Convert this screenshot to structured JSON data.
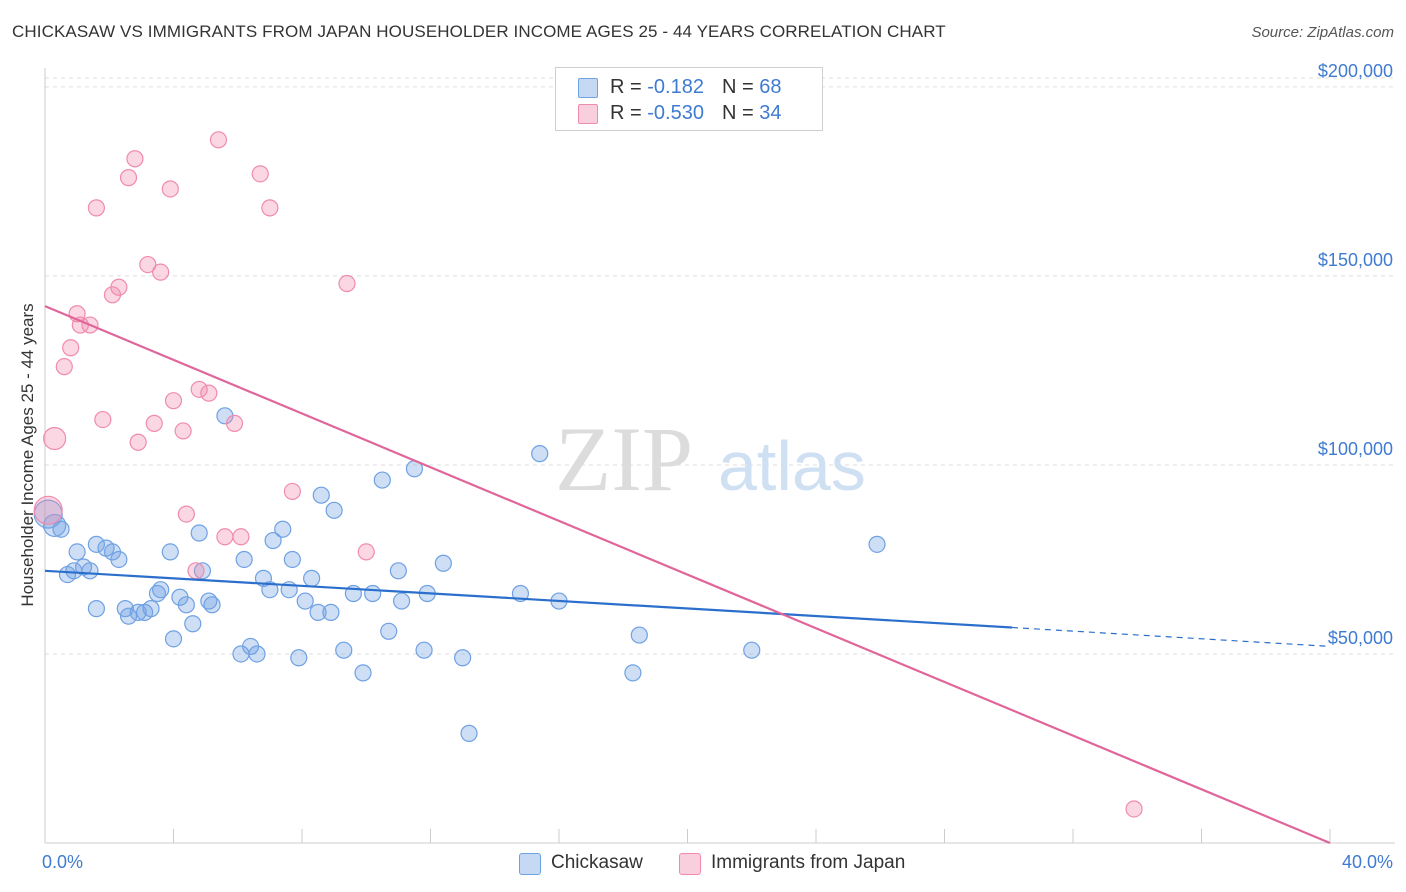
{
  "header": {
    "title": "CHICKASAW VS IMMIGRANTS FROM JAPAN HOUSEHOLDER INCOME AGES 25 - 44 YEARS CORRELATION CHART",
    "source": "Source: ZipAtlas.com"
  },
  "watermark": {
    "zip": "ZIP",
    "atlas": "atlas"
  },
  "legend_top": [
    {
      "r_label": "R = ",
      "r_value": "-0.182",
      "n_label": "N = ",
      "n_value": "68"
    },
    {
      "r_label": "R = ",
      "r_value": "-0.530",
      "n_label": "N = ",
      "n_value": "34"
    }
  ],
  "chart_data": {
    "type": "scatter",
    "title": "CHICKASAW VS IMMIGRANTS FROM JAPAN HOUSEHOLDER INCOME AGES 25 - 44 YEARS CORRELATION CHART",
    "xlabel": "",
    "ylabel": "Householder Income Ages 25 - 44 years",
    "xlim": [
      0,
      40
    ],
    "ylim": [
      0,
      205000
    ],
    "x_tick_labels": [
      "0.0%",
      "40.0%"
    ],
    "y_ticks": [
      50000,
      100000,
      150000,
      200000
    ],
    "y_tick_labels": [
      "$50,000",
      "$100,000",
      "$150,000",
      "$200,000"
    ],
    "grid": true,
    "legend_position": "bottom",
    "colors": {
      "chickasaw": "#6fa1e3",
      "japan": "#f08bae",
      "chickasaw_line": "#2b6fcc",
      "japan_line": "#e0669a",
      "tick_text": "#3f7bd1"
    },
    "series": [
      {
        "name": "Chickasaw",
        "r": -0.182,
        "n": 68,
        "trend": {
          "x": [
            0,
            30.1
          ],
          "y": [
            72000,
            57000
          ],
          "dashed_to": [
            40,
            52000
          ]
        },
        "points": [
          [
            0.1,
            87000,
            26
          ],
          [
            0.3,
            84000,
            20
          ],
          [
            0.5,
            83000,
            14
          ],
          [
            0.7,
            71000,
            14
          ],
          [
            0.9,
            72000,
            14
          ],
          [
            1.0,
            77000,
            14
          ],
          [
            1.2,
            73000,
            14
          ],
          [
            1.4,
            72000,
            14
          ],
          [
            1.6,
            62000,
            14
          ],
          [
            1.6,
            79000,
            14
          ],
          [
            1.9,
            78000,
            14
          ],
          [
            2.1,
            77000,
            14
          ],
          [
            2.3,
            75000,
            14
          ],
          [
            2.5,
            62000,
            14
          ],
          [
            2.6,
            60000,
            14
          ],
          [
            2.9,
            61000,
            14
          ],
          [
            3.1,
            61000,
            14
          ],
          [
            3.3,
            62000,
            14
          ],
          [
            3.5,
            66000,
            14
          ],
          [
            3.6,
            67000,
            14
          ],
          [
            3.9,
            77000,
            14
          ],
          [
            4.0,
            54000,
            14
          ],
          [
            4.2,
            65000,
            14
          ],
          [
            4.4,
            63000,
            14
          ],
          [
            4.6,
            58000,
            14
          ],
          [
            4.8,
            82000,
            14
          ],
          [
            4.9,
            72000,
            14
          ],
          [
            5.1,
            64000,
            14
          ],
          [
            5.2,
            63000,
            14
          ],
          [
            5.6,
            113000,
            14
          ],
          [
            6.1,
            50000,
            14
          ],
          [
            6.2,
            75000,
            14
          ],
          [
            6.4,
            52000,
            14
          ],
          [
            6.6,
            50000,
            14
          ],
          [
            6.8,
            70000,
            14
          ],
          [
            7.0,
            67000,
            14
          ],
          [
            7.1,
            80000,
            14
          ],
          [
            7.4,
            83000,
            14
          ],
          [
            7.6,
            67000,
            14
          ],
          [
            7.7,
            75000,
            14
          ],
          [
            7.9,
            49000,
            14
          ],
          [
            8.1,
            64000,
            14
          ],
          [
            8.3,
            70000,
            14
          ],
          [
            8.5,
            61000,
            14
          ],
          [
            8.6,
            92000,
            14
          ],
          [
            8.9,
            61000,
            14
          ],
          [
            9.0,
            88000,
            14
          ],
          [
            9.3,
            51000,
            14
          ],
          [
            9.6,
            66000,
            14
          ],
          [
            9.9,
            45000,
            14
          ],
          [
            10.2,
            66000,
            14
          ],
          [
            10.5,
            96000,
            14
          ],
          [
            10.7,
            56000,
            14
          ],
          [
            11.0,
            72000,
            14
          ],
          [
            11.1,
            64000,
            14
          ],
          [
            11.5,
            99000,
            14
          ],
          [
            11.8,
            51000,
            14
          ],
          [
            11.9,
            66000,
            14
          ],
          [
            12.4,
            74000,
            14
          ],
          [
            13.0,
            49000,
            14
          ],
          [
            13.2,
            29000,
            14
          ],
          [
            14.8,
            66000,
            14
          ],
          [
            15.4,
            103000,
            14
          ],
          [
            16.0,
            64000,
            14
          ],
          [
            18.3,
            45000,
            14
          ],
          [
            18.5,
            55000,
            14
          ],
          [
            22.0,
            51000,
            14
          ],
          [
            25.9,
            79000,
            14
          ]
        ]
      },
      {
        "name": "Immigrants from Japan",
        "r": -0.53,
        "n": 34,
        "trend": {
          "x": [
            0,
            40
          ],
          "y": [
            142000,
            0
          ]
        },
        "points": [
          [
            0.1,
            88000,
            26
          ],
          [
            0.3,
            107000,
            20
          ],
          [
            0.6,
            126000,
            14
          ],
          [
            0.8,
            131000,
            14
          ],
          [
            1.0,
            140000,
            14
          ],
          [
            1.1,
            137000,
            14
          ],
          [
            1.4,
            137000,
            14
          ],
          [
            1.6,
            168000,
            14
          ],
          [
            1.8,
            112000,
            14
          ],
          [
            2.1,
            145000,
            14
          ],
          [
            2.3,
            147000,
            14
          ],
          [
            2.6,
            176000,
            14
          ],
          [
            2.8,
            181000,
            14
          ],
          [
            2.9,
            106000,
            14
          ],
          [
            3.2,
            153000,
            14
          ],
          [
            3.4,
            111000,
            14
          ],
          [
            3.6,
            151000,
            14
          ],
          [
            3.9,
            173000,
            14
          ],
          [
            4.0,
            117000,
            14
          ],
          [
            4.3,
            109000,
            14
          ],
          [
            4.4,
            87000,
            14
          ],
          [
            4.7,
            72000,
            14
          ],
          [
            4.8,
            120000,
            14
          ],
          [
            5.1,
            119000,
            14
          ],
          [
            5.4,
            186000,
            14
          ],
          [
            5.6,
            81000,
            14
          ],
          [
            5.9,
            111000,
            14
          ],
          [
            6.1,
            81000,
            14
          ],
          [
            6.7,
            177000,
            14
          ],
          [
            7.0,
            168000,
            14
          ],
          [
            7.7,
            93000,
            14
          ],
          [
            9.4,
            148000,
            14
          ],
          [
            10.0,
            77000,
            14
          ],
          [
            33.9,
            9000,
            14
          ]
        ]
      }
    ]
  }
}
